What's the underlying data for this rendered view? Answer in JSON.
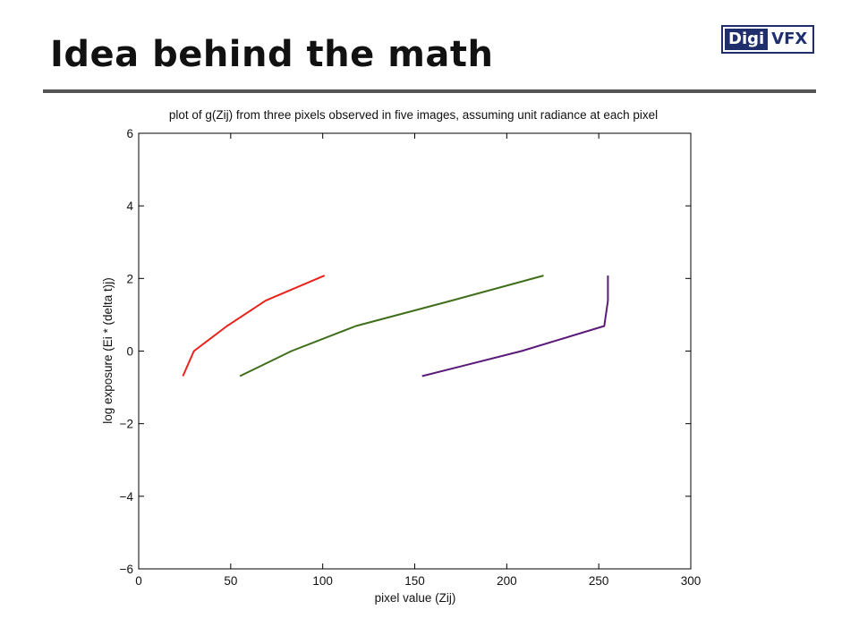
{
  "slide": {
    "title": "Idea behind the math",
    "logo": {
      "box_text": "Digi",
      "text_rest": "VFX"
    }
  },
  "colors": {
    "line_1": "#e8231b",
    "line_2": "#3f6e1a",
    "line_3": "#5b1a7a",
    "title_rule": "#555555",
    "logo": "#1f2f6e"
  },
  "chart_data": {
    "type": "line",
    "title": "plot of g(Zij) from three pixels observed in five images, assuming unit radiance at each pixel",
    "xlabel": "pixel value (Zij)",
    "ylabel": "log exposure (Ei * (delta t)j)",
    "xlim": [
      0,
      300
    ],
    "ylim": [
      -6,
      6
    ],
    "xticks": [
      0,
      50,
      100,
      150,
      200,
      250,
      300
    ],
    "yticks": [
      -6,
      -4,
      -2,
      0,
      2,
      4,
      6
    ],
    "ytick_labels": [
      "−6",
      "−4",
      "−2",
      "0",
      "2",
      "4",
      "6"
    ],
    "grid": false,
    "series": [
      {
        "color": "#e8231b",
        "x": [
          24,
          30,
          48,
          69,
          101
        ],
        "y": [
          -0.69,
          0.0,
          0.69,
          1.39,
          2.08
        ]
      },
      {
        "color": "#3f6e1a",
        "x": [
          55,
          83,
          118,
          170,
          220
        ],
        "y": [
          -0.69,
          0.0,
          0.69,
          1.39,
          2.08
        ]
      },
      {
        "color": "#5b1a7a",
        "x": [
          154,
          208,
          253,
          255,
          255
        ],
        "y": [
          -0.69,
          0.0,
          0.69,
          1.39,
          2.08
        ]
      }
    ]
  }
}
